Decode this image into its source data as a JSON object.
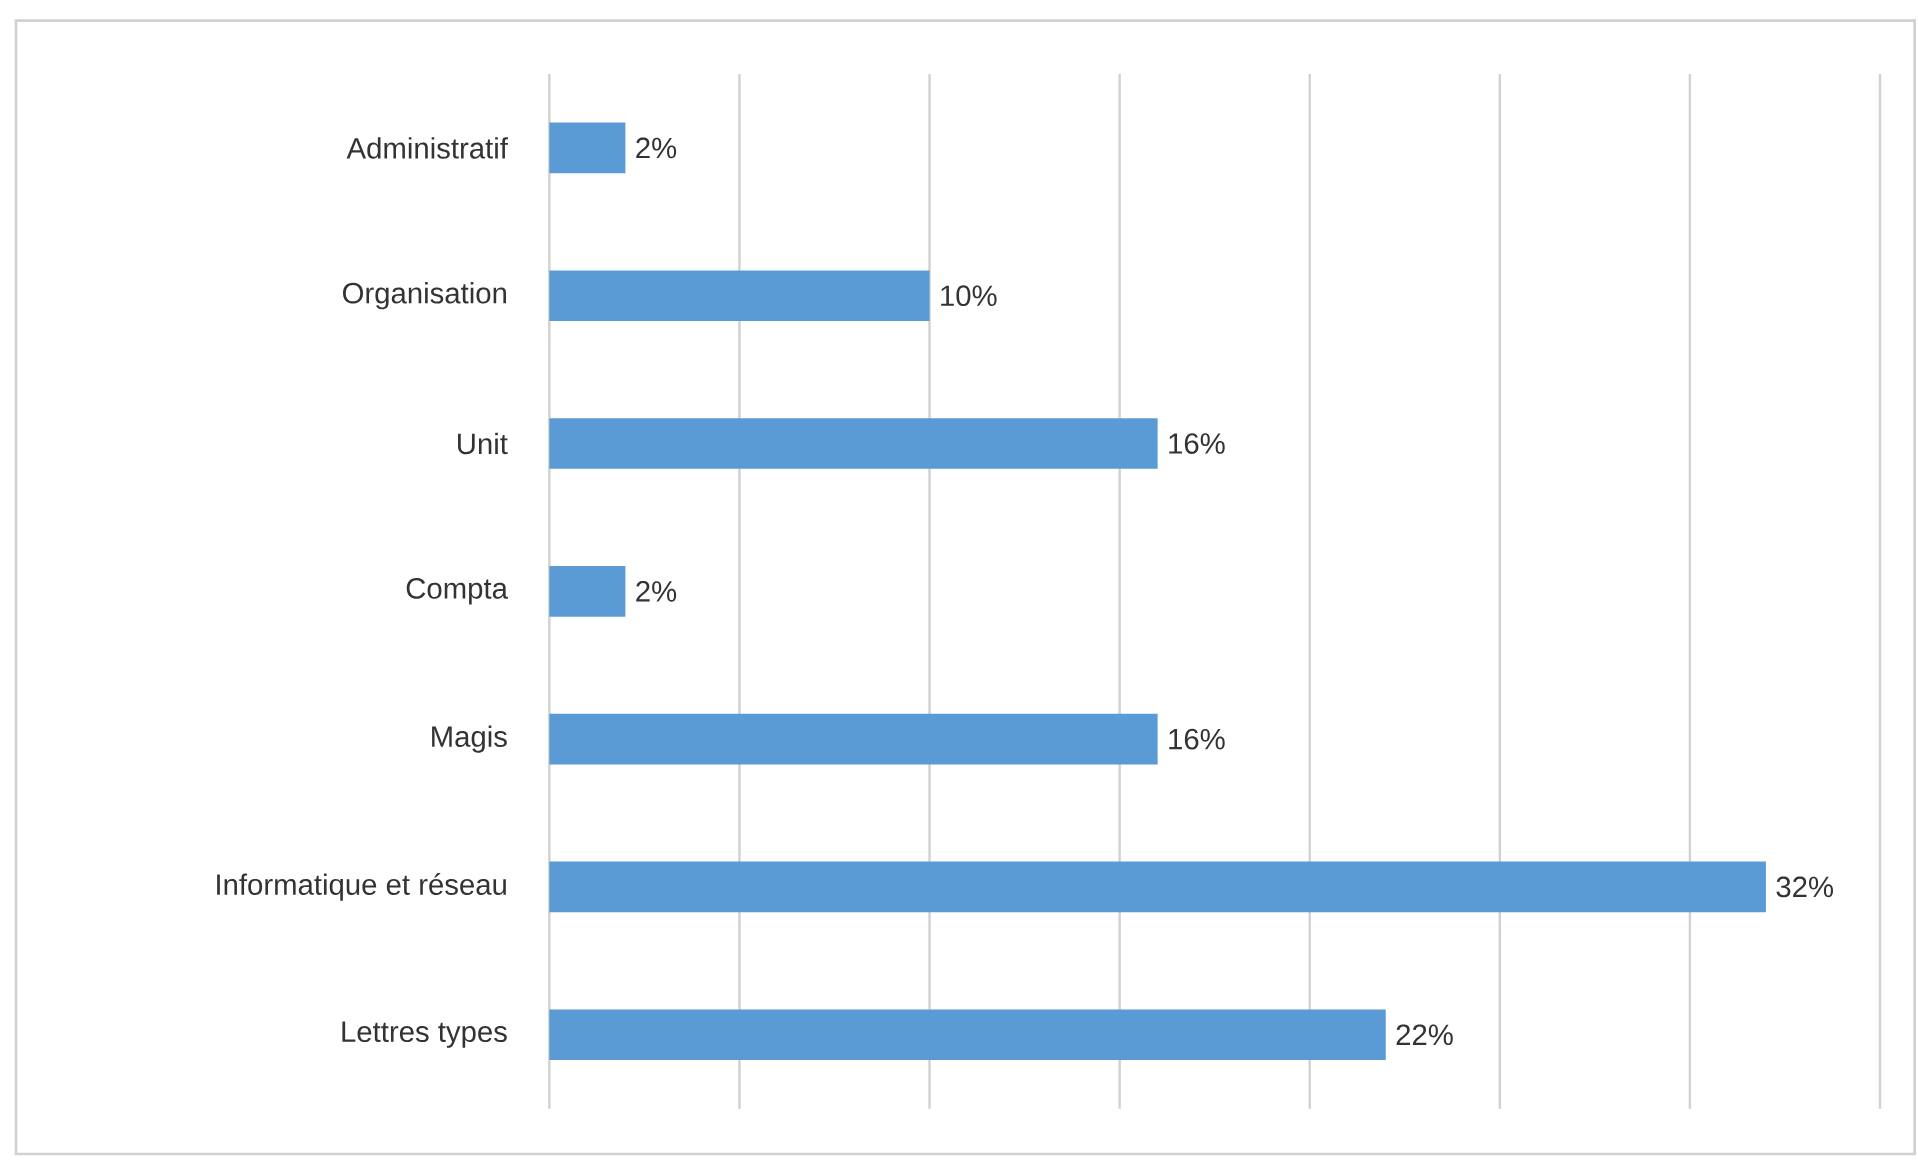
{
  "chart_data": {
    "type": "bar",
    "orientation": "horizontal",
    "categories": [
      "Administratif",
      "Organisation",
      "Unit",
      "Compta",
      "Magis",
      "Informatique et réseau",
      "Lettres types"
    ],
    "values": [
      2,
      10,
      16,
      2,
      16,
      32,
      22
    ],
    "value_labels": [
      "2%",
      "10%",
      "16%",
      "2%",
      "16%",
      "32%",
      "22%"
    ],
    "color": "#5b9bd5",
    "xlim": [
      0,
      35
    ],
    "xticks": [
      {
        "value": 0,
        "label": null
      },
      {
        "value": 5,
        "label": null
      },
      {
        "value": 10,
        "label": null
      },
      {
        "value": 15,
        "label": null
      },
      {
        "value": 20,
        "label": null
      },
      {
        "value": 25,
        "label": null
      },
      {
        "value": 30,
        "label": null
      },
      {
        "value": 35,
        "label": null
      }
    ],
    "grid": "x",
    "tick_labels": "y"
  }
}
